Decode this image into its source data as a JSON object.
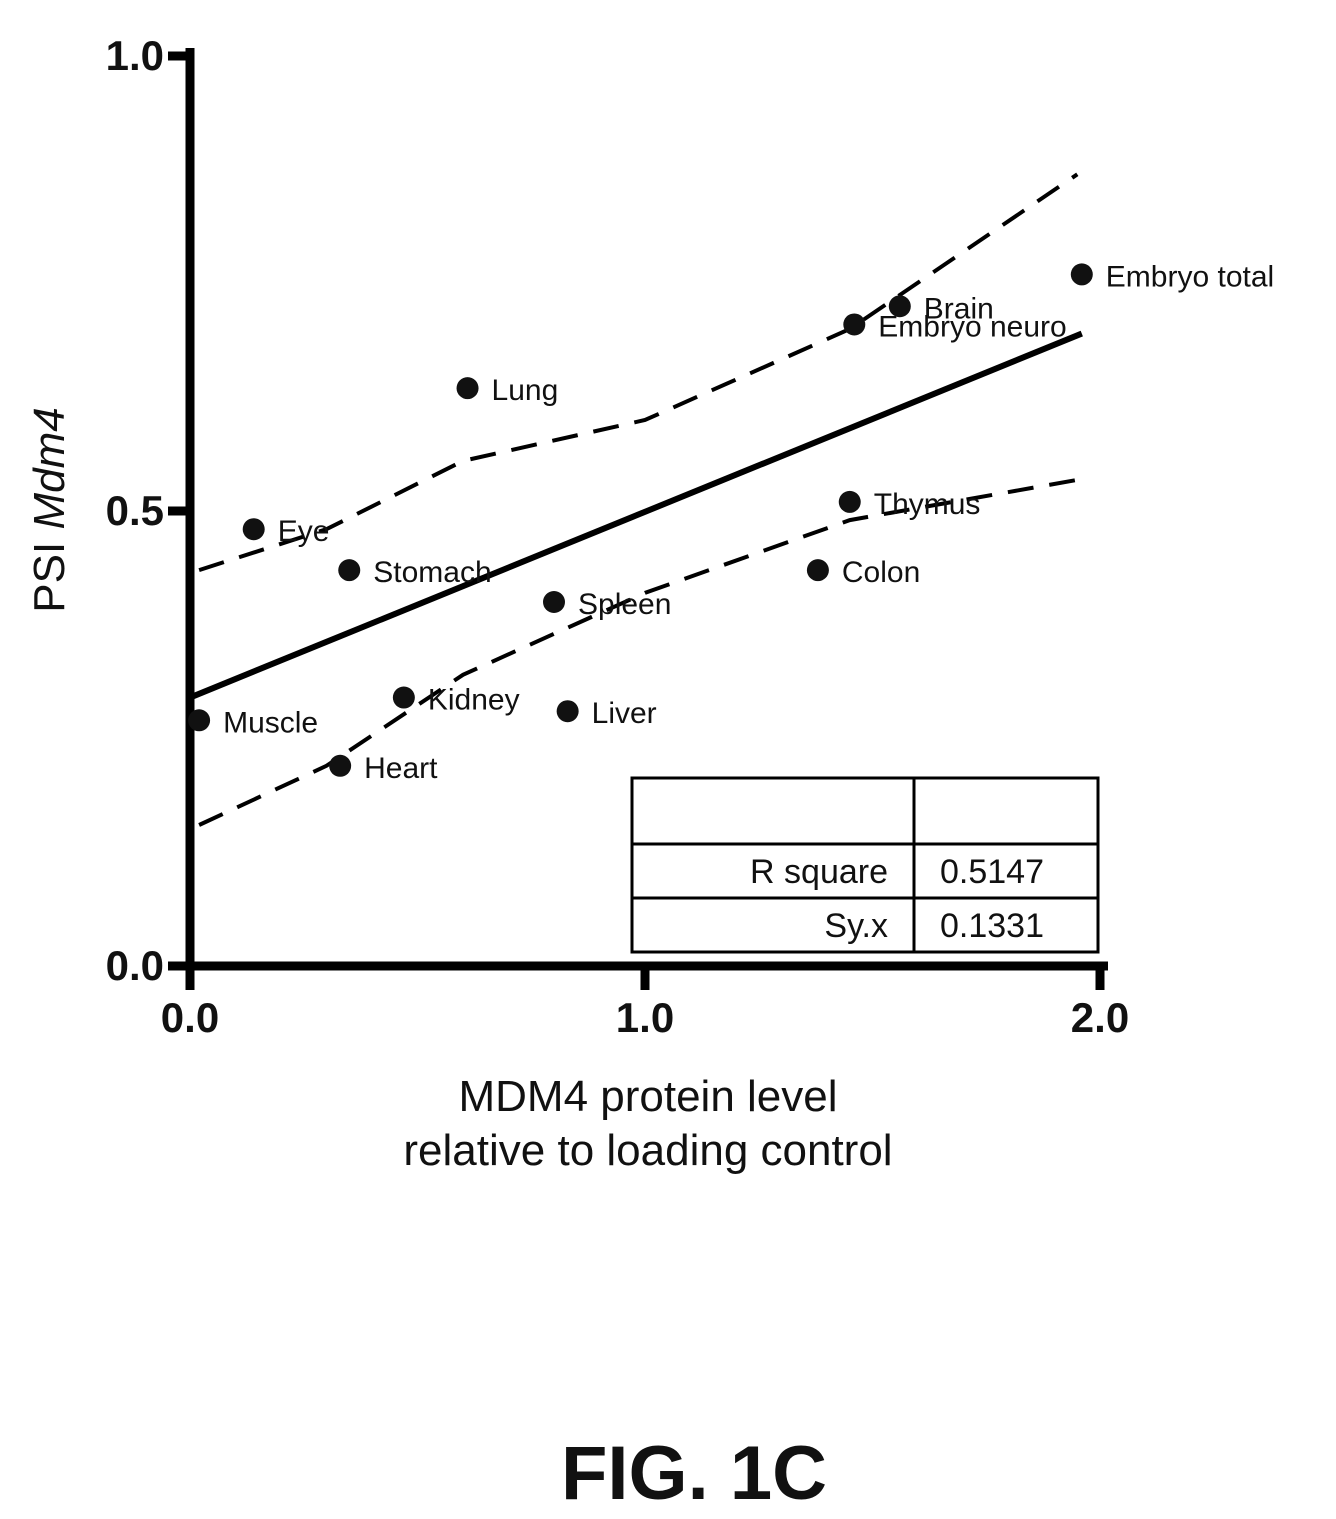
{
  "chart_data": {
    "type": "scatter",
    "xlim": [
      0,
      2
    ],
    "ylim": [
      0,
      1
    ],
    "xticks": [
      "0.0",
      "1.0",
      "2.0"
    ],
    "yticks": [
      "0.0",
      "0.5",
      "1.0"
    ],
    "ylabel_prefix": "PSI ",
    "ylabel_italic": "Mdm4",
    "xlabel_line1": "MDM4 protein level",
    "xlabel_line2": "relative to loading control",
    "points": [
      {
        "label": "Muscle",
        "x": 0.02,
        "y": 0.27
      },
      {
        "label": "Eye",
        "x": 0.14,
        "y": 0.48
      },
      {
        "label": "Heart",
        "x": 0.33,
        "y": 0.22
      },
      {
        "label": "Stomach",
        "x": 0.35,
        "y": 0.435
      },
      {
        "label": "Kidney",
        "x": 0.47,
        "y": 0.295
      },
      {
        "label": "Lung",
        "x": 0.61,
        "y": 0.635
      },
      {
        "label": "Spleen",
        "x": 0.8,
        "y": 0.4
      },
      {
        "label": "Liver",
        "x": 0.83,
        "y": 0.28
      },
      {
        "label": "Colon",
        "x": 1.38,
        "y": 0.435
      },
      {
        "label": "Thymus",
        "x": 1.45,
        "y": 0.51
      },
      {
        "label": "Embryo neuro",
        "x": 1.46,
        "y": 0.705
      },
      {
        "label": "Brain",
        "x": 1.56,
        "y": 0.725
      },
      {
        "label": "Embryo total",
        "x": 1.96,
        "y": 0.76
      }
    ],
    "regression": {
      "x": [
        0,
        1.96
      ],
      "y": [
        0.295,
        0.695
      ]
    },
    "ci_upper": {
      "x": [
        0.02,
        0.3,
        0.6,
        1.0,
        1.45,
        1.95
      ],
      "y": [
        0.435,
        0.48,
        0.555,
        0.6,
        0.7,
        0.87
      ]
    },
    "ci_lower": {
      "x": [
        0.02,
        0.3,
        0.6,
        1.0,
        1.45,
        1.96
      ],
      "y": [
        0.155,
        0.22,
        0.32,
        0.41,
        0.49,
        0.535
      ]
    },
    "stats": {
      "rows": [
        {
          "name": "",
          "value": ""
        },
        {
          "name": "R square",
          "value": "0.5147"
        },
        {
          "name": "Sy.x",
          "value": "0.1331"
        }
      ]
    }
  },
  "figure_label": "FIG. 1C"
}
